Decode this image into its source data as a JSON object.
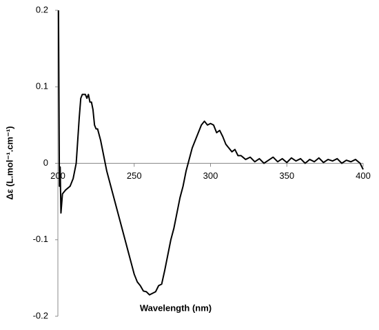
{
  "chart_data": {
    "type": "line",
    "x_label": "Wavelength (nm)",
    "y_label": "Δε (L.mol⁻¹.cm⁻¹)",
    "x": [
      200.4,
      201,
      201.5,
      202,
      203,
      205,
      208,
      210,
      212,
      213,
      214,
      215,
      216,
      218,
      219,
      220,
      221,
      222,
      223,
      224,
      225,
      226,
      228,
      230,
      232,
      234,
      236,
      238,
      240,
      242,
      244,
      246,
      248,
      250,
      252,
      254,
      256,
      258,
      260,
      262,
      264,
      266,
      268,
      270,
      272,
      274,
      276,
      278,
      280,
      282,
      284,
      286,
      288,
      290,
      292,
      294,
      296,
      298,
      300,
      302,
      304,
      306,
      308,
      310,
      312,
      314,
      316,
      318,
      320,
      323,
      326,
      329,
      332,
      335,
      338,
      341,
      344,
      347,
      350,
      353,
      356,
      359,
      362,
      365,
      368,
      371,
      374,
      377,
      380,
      383,
      386,
      389,
      392,
      395,
      398,
      400
    ],
    "values": [
      0.2,
      -0.03,
      -0.005,
      -0.065,
      -0.04,
      -0.035,
      -0.03,
      -0.02,
      0.0,
      0.03,
      0.06,
      0.085,
      0.09,
      0.09,
      0.085,
      0.09,
      0.08,
      0.08,
      0.07,
      0.05,
      0.045,
      0.045,
      0.03,
      0.01,
      -0.01,
      -0.025,
      -0.04,
      -0.055,
      -0.07,
      -0.085,
      -0.1,
      -0.115,
      -0.13,
      -0.145,
      -0.155,
      -0.16,
      -0.167,
      -0.168,
      -0.172,
      -0.17,
      -0.168,
      -0.16,
      -0.158,
      -0.14,
      -0.12,
      -0.1,
      -0.085,
      -0.065,
      -0.045,
      -0.03,
      -0.01,
      0.005,
      0.02,
      0.03,
      0.04,
      0.05,
      0.055,
      0.05,
      0.052,
      0.05,
      0.04,
      0.043,
      0.035,
      0.025,
      0.02,
      0.015,
      0.018,
      0.01,
      0.01,
      0.005,
      0.008,
      0.002,
      0.006,
      0.0,
      0.004,
      0.008,
      0.002,
      0.006,
      0.001,
      0.007,
      0.003,
      0.006,
      0.0,
      0.005,
      0.002,
      0.007,
      0.001,
      0.005,
      0.003,
      0.006,
      0.0,
      0.004,
      0.002,
      0.005,
      0.0,
      -0.008
    ],
    "color": "#000000",
    "xlim": [
      200,
      400
    ],
    "xticks": [
      200,
      250,
      300,
      350,
      400
    ],
    "ylim": [
      -0.2,
      0.2
    ],
    "yticks": [
      0.2,
      0.1,
      0,
      -0.1,
      -0.2
    ]
  }
}
